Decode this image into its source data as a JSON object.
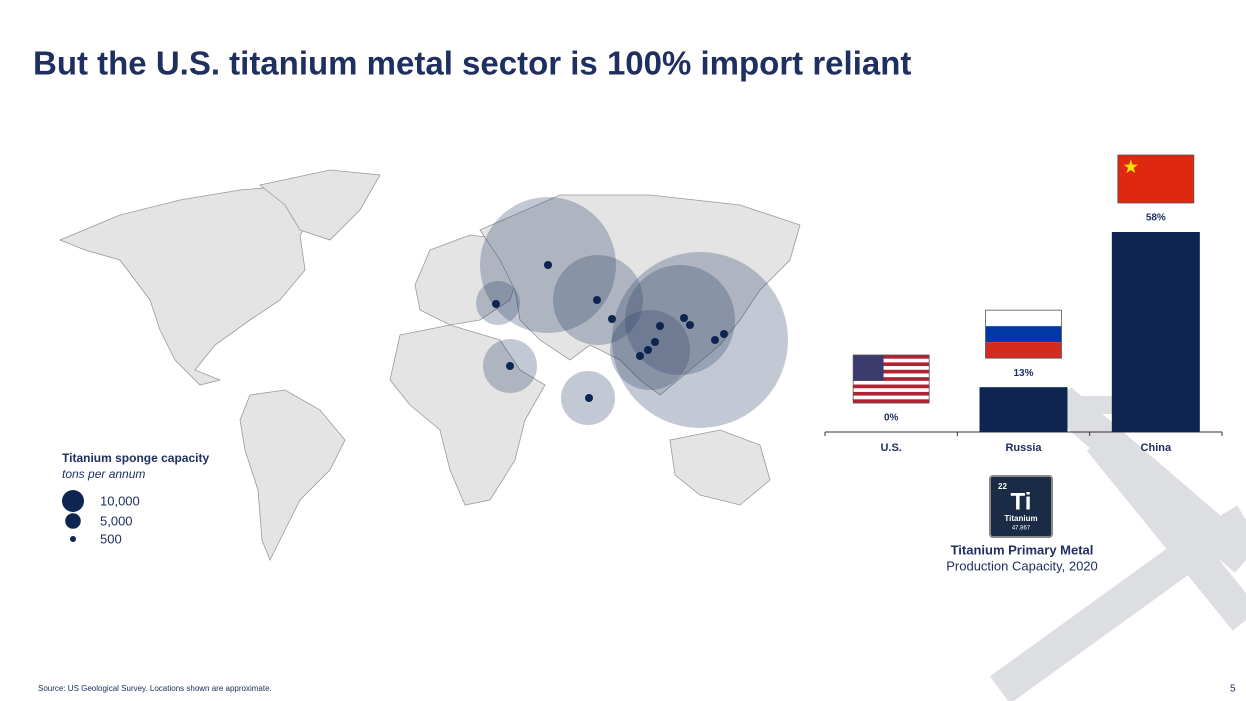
{
  "title": "But the U.S. titanium metal sector is 100% import reliant",
  "map_legend": {
    "title": "Titanium sponge capacity",
    "subtitle": "tons per annum",
    "sizes": [
      {
        "value": 10000,
        "label": "10,000"
      },
      {
        "value": 5000,
        "label": "5,000"
      },
      500
    ]
  },
  "element": {
    "number": "22",
    "symbol": "Ti",
    "name": "Titanium",
    "mass": "47.867"
  },
  "source": "Source: US Geological Survey. Locations shown are approximate.",
  "page_number": "5",
  "chart_data": {
    "type": "bar",
    "title": "Titanium Primary Metal",
    "subtitle": "Production Capacity, 2020",
    "categories": [
      "U.S.",
      "Russia",
      "China"
    ],
    "values": [
      0,
      13,
      58
    ],
    "value_labels": [
      "0%",
      "13%",
      "58%"
    ],
    "color": "#0d2550"
  }
}
